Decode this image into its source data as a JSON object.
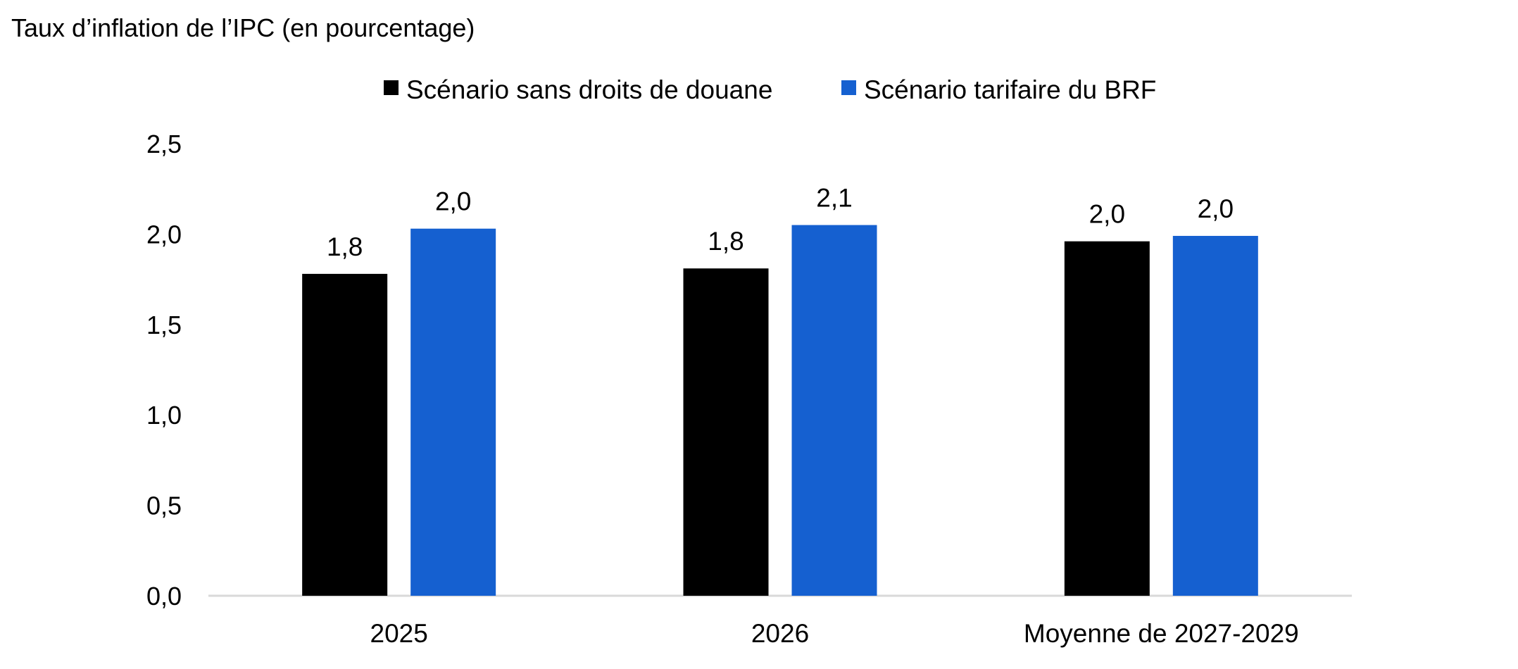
{
  "chart_data": {
    "type": "bar",
    "ylabel": "Taux d’inflation de l’IPC (en pourcentage)",
    "categories": [
      "2025",
      "2026",
      "Moyenne de 2027-2029"
    ],
    "series": [
      {
        "name": "Scénario sans droits de douane",
        "color": "#000000",
        "values": [
          1.78,
          1.81,
          1.96
        ],
        "labels": [
          "1,8",
          "1,8",
          "2,0"
        ]
      },
      {
        "name": "Scénario tarifaire du BRF",
        "color": "#1560D0",
        "values": [
          2.03,
          2.05,
          1.99
        ],
        "labels": [
          "2,0",
          "2,1",
          "2,0"
        ]
      }
    ],
    "ylim": [
      0,
      2.5
    ],
    "yticks": [
      "0,0",
      "0,5",
      "1,0",
      "1,5",
      "2,0",
      "2,5"
    ],
    "grid": false,
    "legend_position": "top-center"
  }
}
